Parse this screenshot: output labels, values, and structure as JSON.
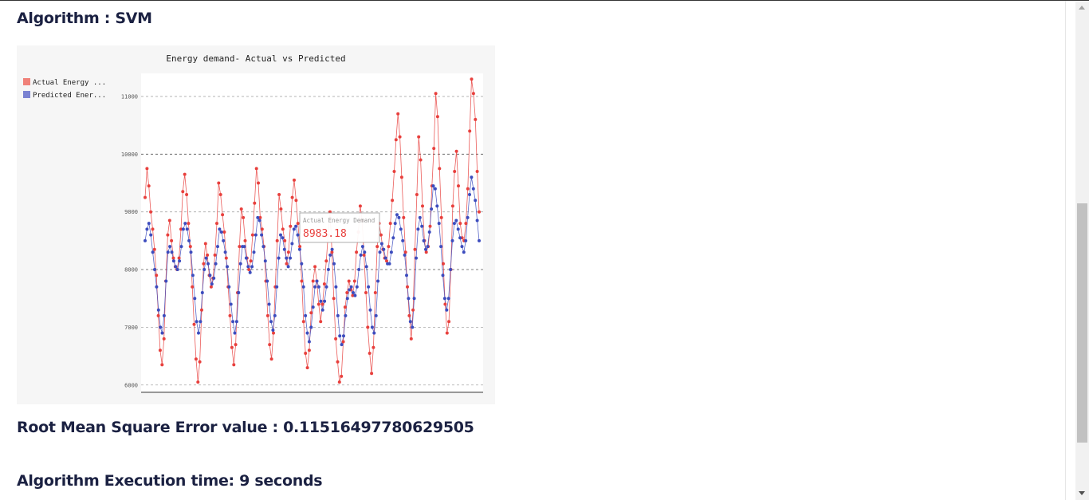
{
  "headings": {
    "algorithm": "Algorithm : SVM",
    "rmse": "Root Mean Square Error value : 0.11516497780629505",
    "exec_time": "Algorithm Execution time: 9 seconds"
  },
  "tooltip": {
    "series": "Actual Energy Demand",
    "value": "8983.18"
  },
  "colors": {
    "actual": "#e8403d",
    "predicted": "#3c4cbe",
    "heading": "#1b2142",
    "chart_background": "#f6f6f6"
  },
  "chart_data": {
    "type": "line",
    "title": "Energy demand- Actual vs Predicted",
    "xlabel": "",
    "ylabel": "",
    "ylim": [
      5900,
      11400
    ],
    "yticks": [
      6000,
      7000,
      8000,
      9000,
      10000,
      11000
    ],
    "grid": true,
    "legend_position": "top-left",
    "legend": [
      "Actual Energy ...",
      "Predicted Ener..."
    ],
    "series": [
      {
        "name": "Actual Energy Demand",
        "values": [
          9250,
          9750,
          9450,
          9000,
          8700,
          8350,
          7900,
          7200,
          6600,
          6350,
          6800,
          7800,
          8600,
          8850,
          8500,
          8200,
          8050,
          8000,
          8200,
          8700,
          9350,
          9650,
          9300,
          8800,
          8400,
          7700,
          7050,
          6450,
          6050,
          6400,
          7300,
          8100,
          8450,
          8250,
          7900,
          7700,
          7850,
          8250,
          8800,
          9500,
          9300,
          8950,
          8650,
          8200,
          7700,
          7200,
          6650,
          6350,
          6700,
          7600,
          8400,
          9050,
          8900,
          8500,
          8200,
          8000,
          8150,
          8600,
          9150,
          9750,
          9500,
          8900,
          8700,
          8400,
          7800,
          7200,
          6700,
          6450,
          6900,
          7700,
          8500,
          9300,
          9050,
          8700,
          8500,
          8100,
          8300,
          8750,
          9250,
          9550,
          9200,
          8800,
          8400,
          7800,
          7100,
          6550,
          6300,
          6600,
          7250,
          7800,
          8050,
          7800,
          7400,
          7100,
          7400,
          7750,
          8150,
          8600,
          9000,
          8300,
          7500,
          6800,
          6400,
          6050,
          6150,
          6750,
          7350,
          7600,
          7800,
          7650,
          7550,
          7800,
          8300,
          8650,
          9100,
          8850,
          8250,
          7600,
          7000,
          6550,
          6200,
          6650,
          7600,
          8400,
          8800,
          8600,
          8350,
          8200,
          8150,
          8400,
          8800,
          9200,
          9700,
          10250,
          10700,
          10300,
          9600,
          8900,
          8300,
          7700,
          7200,
          6800,
          7300,
          8350,
          9300,
          10300,
          9900,
          9100,
          8500,
          8300,
          8400,
          8750,
          9450,
          10100,
          11050,
          10650,
          9750,
          8900,
          8100,
          7400,
          6900,
          7100,
          8000,
          9100,
          9700,
          10050,
          9450,
          8800,
          8550,
          8500,
          8800,
          9400,
          10400,
          11300,
          11050,
          10600,
          9700,
          9000
        ]
      },
      {
        "name": "Predicted Energy Demand",
        "values": [
          8500,
          8700,
          8800,
          8600,
          8300,
          8000,
          7700,
          7300,
          7000,
          6900,
          7200,
          7800,
          8300,
          8400,
          8300,
          8150,
          8050,
          8000,
          8150,
          8400,
          8700,
          8800,
          8700,
          8500,
          8300,
          7900,
          7500,
          7100,
          6900,
          7100,
          7600,
          8000,
          8200,
          8100,
          7900,
          7750,
          7850,
          8100,
          8400,
          8700,
          8650,
          8500,
          8300,
          8050,
          7700,
          7400,
          7100,
          6900,
          7100,
          7600,
          8100,
          8400,
          8400,
          8200,
          8050,
          7950,
          8050,
          8300,
          8600,
          8900,
          8850,
          8600,
          8400,
          8150,
          7800,
          7400,
          7100,
          6950,
          7200,
          7700,
          8200,
          8600,
          8550,
          8350,
          8200,
          8050,
          8200,
          8450,
          8700,
          8750,
          8600,
          8350,
          8100,
          7700,
          7200,
          6900,
          6750,
          7000,
          7350,
          7700,
          7800,
          7700,
          7450,
          7300,
          7450,
          7700,
          8000,
          8250,
          8350,
          8100,
          7700,
          7200,
          6850,
          6700,
          6850,
          7200,
          7500,
          7650,
          7700,
          7600,
          7550,
          7700,
          8000,
          8250,
          8400,
          8300,
          8050,
          7700,
          7300,
          7000,
          6900,
          7200,
          7800,
          8300,
          8450,
          8350,
          8200,
          8100,
          8100,
          8300,
          8550,
          8800,
          8950,
          8900,
          8700,
          8500,
          8250,
          7900,
          7500,
          7100,
          7000,
          7500,
          8200,
          8700,
          8900,
          8750,
          8500,
          8350,
          8400,
          8650,
          9050,
          9450,
          9400,
          9100,
          8800,
          8400,
          7900,
          7500,
          7300,
          7500,
          8000,
          8500,
          8800,
          8850,
          8700,
          8550,
          8400,
          8300,
          8500,
          8900,
          9300,
          9600,
          9400,
          9200,
          8850,
          8500
        ]
      }
    ]
  }
}
